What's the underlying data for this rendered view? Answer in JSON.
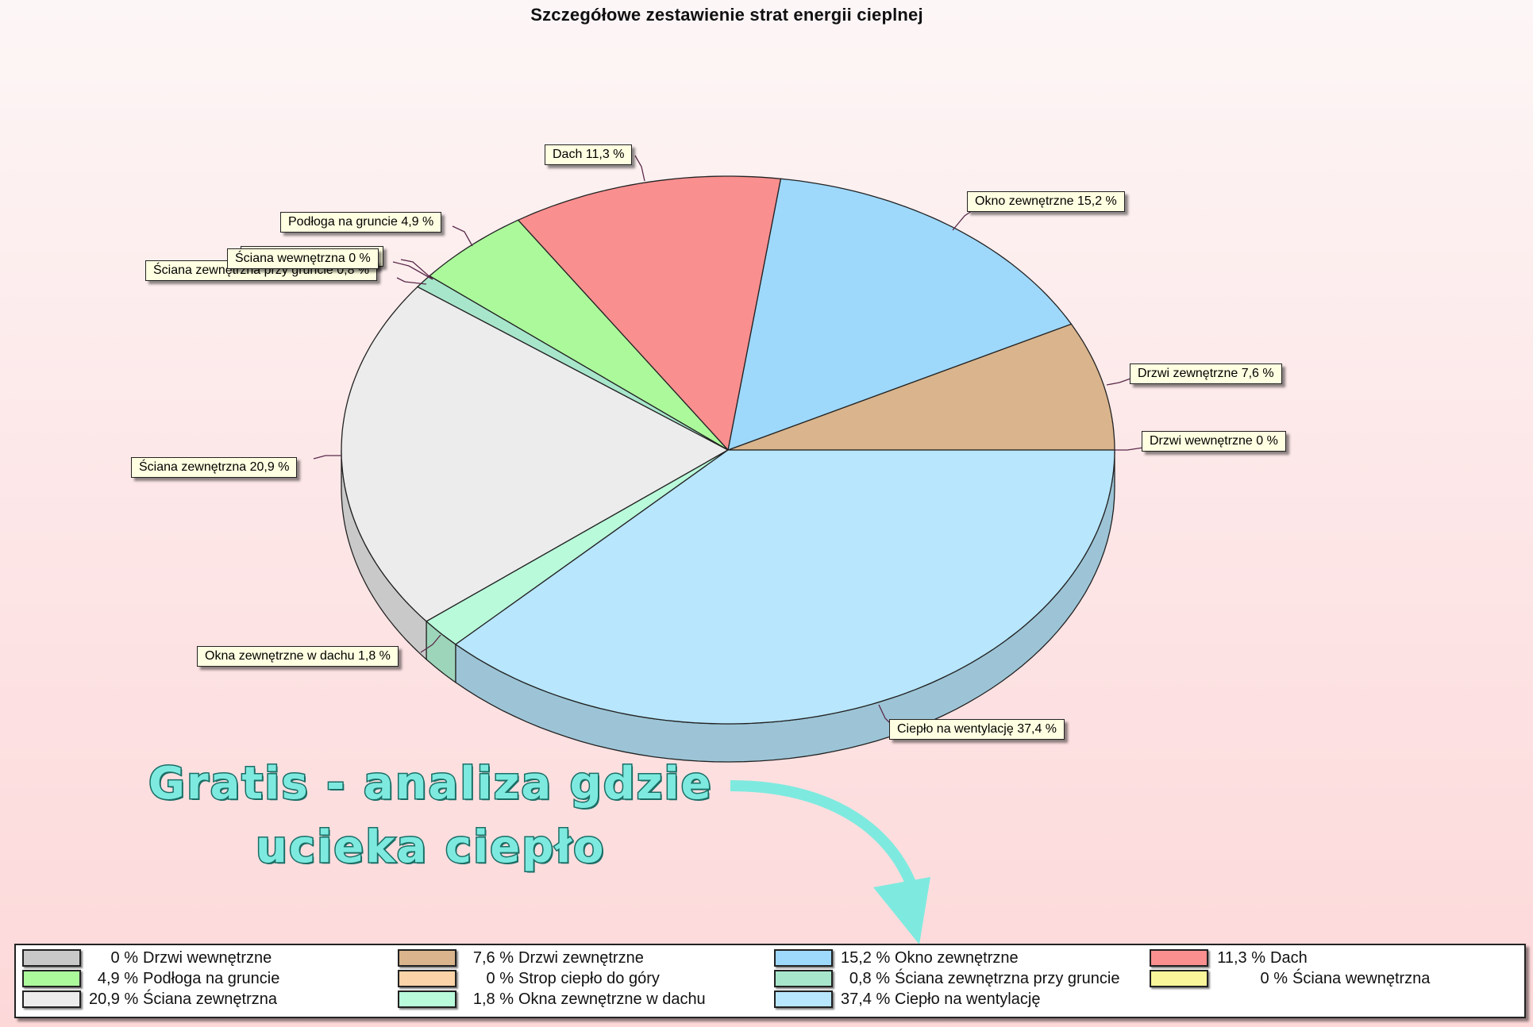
{
  "chart_data": {
    "type": "pie",
    "style": "3d",
    "title": "Szczegółowe zestawienie strat energii cieplnej",
    "unit": "%",
    "slices": [
      {
        "label": "Drzwi wewnętrzne",
        "value": 0,
        "color": "#c8c8c8",
        "callout": "Drzwi wewnętrzne 0 %"
      },
      {
        "label": "Drzwi zewnętrzne",
        "value": 7.6,
        "color": "#d9b48c",
        "callout": "Drzwi zewnętrzne 7,6 %"
      },
      {
        "label": "Okno zewnętrzne",
        "value": 15.2,
        "color": "#9ed8fb",
        "callout": "Okno zewnętrzne 15,2 %"
      },
      {
        "label": "Dach",
        "value": 11.3,
        "color": "#f98f8f",
        "callout": "Dach 11,3 %"
      },
      {
        "label": "Podłoga na gruncie",
        "value": 4.9,
        "color": "#acf99c",
        "callout": "Podłoga na gruncie 4,9 %"
      },
      {
        "label": "Strop ciepło do góry",
        "value": 0,
        "color": "#fbd3a8",
        "callout": ""
      },
      {
        "label": "Ściana wewnętrzna",
        "value": 0,
        "color": "#f9f59a",
        "callout": "Ściana wewnętrzna 0 %"
      },
      {
        "label": "Ściana zewnętrzna przy gruncie",
        "value": 0.8,
        "color": "#a8e6cc",
        "callout": "Ściana zewnętrzna przy gruncie 0,8 %"
      },
      {
        "label": "Ściana zewnętrzna",
        "value": 20.9,
        "color": "#ececec",
        "callout": "Ściana zewnętrzna 20,9 %"
      },
      {
        "label": "Okna zewnętrzne w dachu",
        "value": 1.8,
        "color": "#b9fadb",
        "callout": "Okna zewnętrzne w dachu 1,8 %"
      },
      {
        "label": "Ciepło na wentylację",
        "value": 37.4,
        "color": "#b8e6fc",
        "callout": "Ciepło na wentylację 37,4 %"
      }
    ],
    "legend_position": "bottom"
  },
  "callouts": {
    "dach": "Dach 11,3 %",
    "okno": "Okno zewnętrzne 15,2 %",
    "podloga": "Podłoga na gruncie 4,9 %",
    "sciana_wewn": "Ściana wewnętrzna 0 %",
    "sciana_grunt": "Ściana zewnętrzna przy gruncie 0,8 %",
    "drzwi_zewn": "Drzwi zewnętrzne 7,6 %",
    "drzwi_wewn": "Drzwi wewnętrzne 0 %",
    "sciana_zewn": "Ściana zewnętrzna 20,9 %",
    "okna_dach": "Okna zewnętrzne w dachu 1,8 %",
    "wentylacja": "Ciepło na wentylację 37,4 %"
  },
  "promo": {
    "line1": "Gratis - analiza gdzie",
    "line2": "ucieka ciepło",
    "color": "#7eeadf"
  },
  "legend": [
    {
      "value": "0 %",
      "label": "Drzwi wewnętrzne",
      "color": "#c8c8c8"
    },
    {
      "value": "7,6 %",
      "label": "Drzwi zewnętrzne",
      "color": "#d9b48c"
    },
    {
      "value": "15,2 %",
      "label": "Okno zewnętrzne",
      "color": "#9ed8fb"
    },
    {
      "value": "11,3 %",
      "label": "Dach",
      "color": "#f98f8f"
    },
    {
      "value": "4,9 %",
      "label": "Podłoga na gruncie",
      "color": "#acf99c"
    },
    {
      "value": "0 %",
      "label": "Strop ciepło do góry",
      "color": "#fbd3a8"
    },
    {
      "value": "0,8 %",
      "label": "Ściana zewnętrzna przy gruncie",
      "color": "#a8e6cc"
    },
    {
      "value": "0 %",
      "label": "Ściana wewnętrzna",
      "color": "#f9f59a"
    },
    {
      "value": "20,9 %",
      "label": "Ściana zewnętrzna",
      "color": "#ececec"
    },
    {
      "value": "1,8 %",
      "label": "Okna zewnętrzne w dachu",
      "color": "#b9fadb"
    },
    {
      "value": "37,4 %",
      "label": "Ciepło na wentylację",
      "color": "#b8e6fc"
    }
  ]
}
